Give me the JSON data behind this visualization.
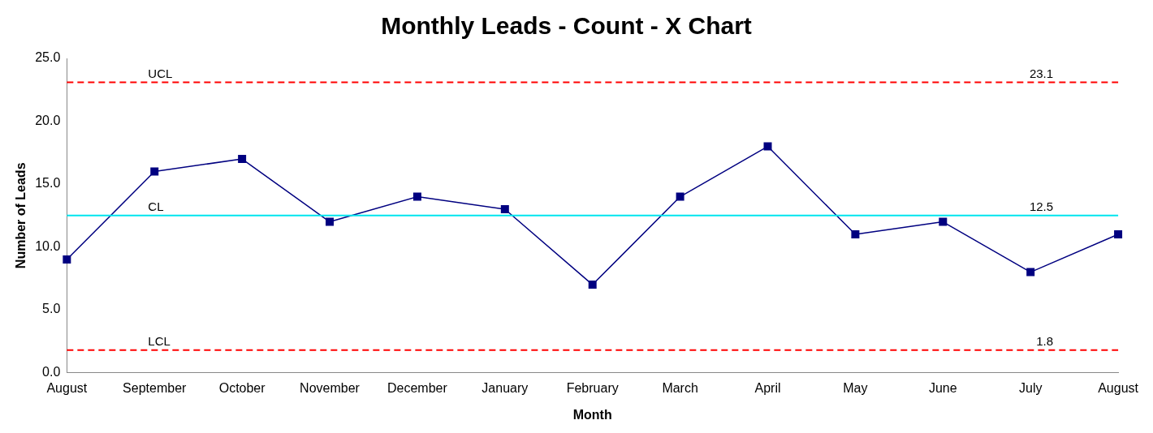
{
  "chart_data": {
    "type": "line",
    "title": "Monthly Leads - Count - X Chart",
    "xlabel": "Month",
    "ylabel": "Number of Leads",
    "categories": [
      "August",
      "September",
      "October",
      "November",
      "December",
      "January",
      "February",
      "March",
      "April",
      "May",
      "June",
      "July",
      "August"
    ],
    "series": [
      {
        "color": "#000080",
        "values": [
          9,
          16,
          17,
          12,
          14,
          13,
          7,
          14,
          18,
          11,
          12,
          8,
          11
        ]
      }
    ],
    "ylim": [
      0,
      25
    ],
    "yticks": [
      {
        "value": 0,
        "label": "0.0"
      },
      {
        "value": 5,
        "label": "5.0"
      },
      {
        "value": 10,
        "label": "10.0"
      },
      {
        "value": 15,
        "label": "15.0"
      },
      {
        "value": 20,
        "label": "20.0"
      },
      {
        "value": 25,
        "label": "25.0"
      }
    ],
    "ref_lines": [
      {
        "axis": "y",
        "value": 23.1,
        "label": "UCL",
        "color": "#ff0000",
        "line_style": "dashed"
      },
      {
        "axis": "y",
        "value": 12.5,
        "label": "CL",
        "color": "#00e5ee",
        "line_style": "solid"
      },
      {
        "axis": "y",
        "value": 1.8,
        "label": "LCL",
        "color": "#ff0000",
        "line_style": "dashed"
      }
    ],
    "annotations": [
      {
        "text": "23.1",
        "y": 23.1
      },
      {
        "text": "12.5",
        "y": 12.5
      },
      {
        "text": "1.8",
        "y": 1.8
      }
    ],
    "marker": "square",
    "line_style": "solid",
    "grid": false,
    "legend": false
  }
}
